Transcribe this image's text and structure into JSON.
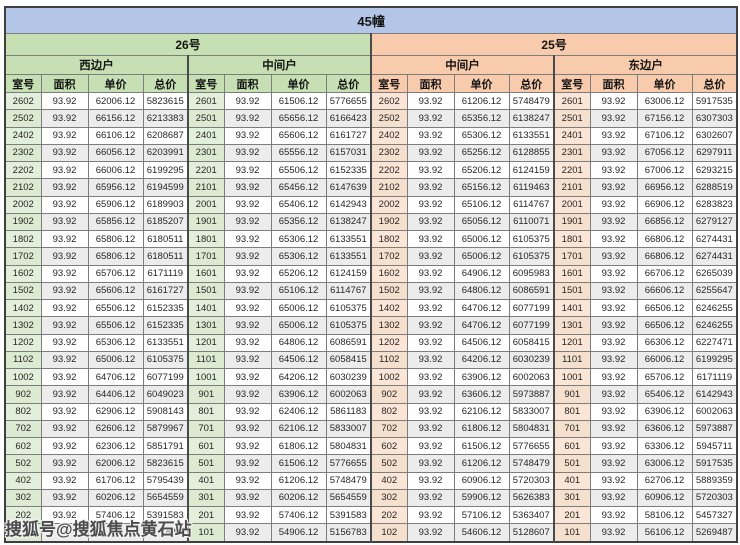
{
  "title": "45幢",
  "watermark": "搜狐号@搜狐焦点黄石站",
  "sections": [
    {
      "label": "26号"
    },
    {
      "label": "25号"
    }
  ],
  "unit_types": [
    "西边户",
    "中间户",
    "中间户",
    "东边户"
  ],
  "columns": [
    "室号",
    "面积",
    "单价",
    "总价"
  ],
  "colors": {
    "title_bg": "#b4c6e7",
    "section_26_bg": "#c6e0b4",
    "section_25_bg": "#f8cbad",
    "room_col_26_bg": "#e2efda",
    "room_col_25_bg": "#fbe5d6",
    "alt_row_bg": "#ececec",
    "border": "#7d7d7d"
  },
  "groups": [
    {
      "building": "26号",
      "unit": "西边户",
      "rows": [
        [
          "2602",
          "93.92",
          "62006.12",
          "5823615"
        ],
        [
          "2502",
          "93.92",
          "66156.12",
          "6213383"
        ],
        [
          "2402",
          "93.92",
          "66106.12",
          "6208687"
        ],
        [
          "2302",
          "93.92",
          "66056.12",
          "6203991"
        ],
        [
          "2202",
          "93.92",
          "66006.12",
          "6199295"
        ],
        [
          "2102",
          "93.92",
          "65956.12",
          "6194599"
        ],
        [
          "2002",
          "93.92",
          "65906.12",
          "6189903"
        ],
        [
          "1902",
          "93.92",
          "65856.12",
          "6185207"
        ],
        [
          "1802",
          "93.92",
          "65806.12",
          "6180511"
        ],
        [
          "1702",
          "93.92",
          "65806.12",
          "6180511"
        ],
        [
          "1602",
          "93.92",
          "65706.12",
          "6171119"
        ],
        [
          "1502",
          "93.92",
          "65606.12",
          "6161727"
        ],
        [
          "1402",
          "93.92",
          "65506.12",
          "6152335"
        ],
        [
          "1302",
          "93.92",
          "65506.12",
          "6152335"
        ],
        [
          "1202",
          "93.92",
          "65306.12",
          "6133551"
        ],
        [
          "1102",
          "93.92",
          "65006.12",
          "6105375"
        ],
        [
          "1002",
          "93.92",
          "64706.12",
          "6077199"
        ],
        [
          "902",
          "93.92",
          "64406.12",
          "6049023"
        ],
        [
          "802",
          "93.92",
          "62906.12",
          "5908143"
        ],
        [
          "702",
          "93.92",
          "62606.12",
          "5879967"
        ],
        [
          "602",
          "93.92",
          "62306.12",
          "5851791"
        ],
        [
          "502",
          "93.92",
          "62006.12",
          "5823615"
        ],
        [
          "402",
          "93.92",
          "61706.12",
          "5795439"
        ],
        [
          "302",
          "93.92",
          "60206.12",
          "5654559"
        ],
        [
          "202",
          "93.92",
          "57406.12",
          "5391583"
        ],
        [
          "",
          "",
          "",
          "743"
        ]
      ]
    },
    {
      "building": "26号",
      "unit": "中间户",
      "rows": [
        [
          "2601",
          "93.92",
          "61506.12",
          "5776655"
        ],
        [
          "2501",
          "93.92",
          "65656.12",
          "6166423"
        ],
        [
          "2401",
          "93.92",
          "65606.12",
          "6161727"
        ],
        [
          "2301",
          "93.92",
          "65556.12",
          "6157031"
        ],
        [
          "2201",
          "93.92",
          "65506.12",
          "6152335"
        ],
        [
          "2101",
          "93.92",
          "65456.12",
          "6147639"
        ],
        [
          "2001",
          "93.92",
          "65406.12",
          "6142943"
        ],
        [
          "1901",
          "93.92",
          "65356.12",
          "6138247"
        ],
        [
          "1801",
          "93.92",
          "65306.12",
          "6133551"
        ],
        [
          "1701",
          "93.92",
          "65306.12",
          "6133551"
        ],
        [
          "1601",
          "93.92",
          "65206.12",
          "6124159"
        ],
        [
          "1501",
          "93.92",
          "65106.12",
          "6114767"
        ],
        [
          "1401",
          "93.92",
          "65006.12",
          "6105375"
        ],
        [
          "1301",
          "93.92",
          "65006.12",
          "6105375"
        ],
        [
          "1201",
          "93.92",
          "64806.12",
          "6086591"
        ],
        [
          "1101",
          "93.92",
          "64506.12",
          "6058415"
        ],
        [
          "1001",
          "93.92",
          "64206.12",
          "6030239"
        ],
        [
          "901",
          "93.92",
          "63906.12",
          "6002063"
        ],
        [
          "801",
          "93.92",
          "62406.12",
          "5861183"
        ],
        [
          "701",
          "93.92",
          "62106.12",
          "5833007"
        ],
        [
          "601",
          "93.92",
          "61806.12",
          "5804831"
        ],
        [
          "501",
          "93.92",
          "61506.12",
          "5776655"
        ],
        [
          "401",
          "93.92",
          "61206.12",
          "5748479"
        ],
        [
          "301",
          "93.92",
          "60206.12",
          "5654559"
        ],
        [
          "201",
          "93.92",
          "57406.12",
          "5391583"
        ],
        [
          "101",
          "93.92",
          "54906.12",
          "5156783"
        ]
      ]
    },
    {
      "building": "25号",
      "unit": "中间户",
      "rows": [
        [
          "2602",
          "93.92",
          "61206.12",
          "5748479"
        ],
        [
          "2502",
          "93.92",
          "65356.12",
          "6138247"
        ],
        [
          "2402",
          "93.92",
          "65306.12",
          "6133551"
        ],
        [
          "2302",
          "93.92",
          "65256.12",
          "6128855"
        ],
        [
          "2202",
          "93.92",
          "65206.12",
          "6124159"
        ],
        [
          "2102",
          "93.92",
          "65156.12",
          "6119463"
        ],
        [
          "2002",
          "93.92",
          "65106.12",
          "6114767"
        ],
        [
          "1902",
          "93.92",
          "65056.12",
          "6110071"
        ],
        [
          "1802",
          "93.92",
          "65006.12",
          "6105375"
        ],
        [
          "1702",
          "93.92",
          "65006.12",
          "6105375"
        ],
        [
          "1602",
          "93.92",
          "64906.12",
          "6095983"
        ],
        [
          "1502",
          "93.92",
          "64806.12",
          "6086591"
        ],
        [
          "1402",
          "93.92",
          "64706.12",
          "6077199"
        ],
        [
          "1302",
          "93.92",
          "64706.12",
          "6077199"
        ],
        [
          "1202",
          "93.92",
          "64506.12",
          "6058415"
        ],
        [
          "1102",
          "93.92",
          "64206.12",
          "6030239"
        ],
        [
          "1002",
          "93.92",
          "63906.12",
          "6002063"
        ],
        [
          "902",
          "93.92",
          "63606.12",
          "5973887"
        ],
        [
          "802",
          "93.92",
          "62106.12",
          "5833007"
        ],
        [
          "702",
          "93.92",
          "61806.12",
          "5804831"
        ],
        [
          "602",
          "93.92",
          "61506.12",
          "5776655"
        ],
        [
          "502",
          "93.92",
          "61206.12",
          "5748479"
        ],
        [
          "402",
          "93.92",
          "60906.12",
          "5720303"
        ],
        [
          "302",
          "93.92",
          "59906.12",
          "5626383"
        ],
        [
          "202",
          "93.92",
          "57106.12",
          "5363407"
        ],
        [
          "102",
          "93.92",
          "54606.12",
          "5128607"
        ]
      ]
    },
    {
      "building": "25号",
      "unit": "东边户",
      "rows": [
        [
          "2601",
          "93.92",
          "63006.12",
          "5917535"
        ],
        [
          "2501",
          "93.92",
          "67156.12",
          "6307303"
        ],
        [
          "2401",
          "93.92",
          "67106.12",
          "6302607"
        ],
        [
          "2301",
          "93.92",
          "67056.12",
          "6297911"
        ],
        [
          "2201",
          "93.92",
          "67006.12",
          "6293215"
        ],
        [
          "2101",
          "93.92",
          "66956.12",
          "6288519"
        ],
        [
          "2001",
          "93.92",
          "66906.12",
          "6283823"
        ],
        [
          "1901",
          "93.92",
          "66856.12",
          "6279127"
        ],
        [
          "1801",
          "93.92",
          "66806.12",
          "6274431"
        ],
        [
          "1701",
          "93.92",
          "66806.12",
          "6274431"
        ],
        [
          "1601",
          "93.92",
          "66706.12",
          "6265039"
        ],
        [
          "1501",
          "93.92",
          "66606.12",
          "6255647"
        ],
        [
          "1401",
          "93.92",
          "66506.12",
          "6246255"
        ],
        [
          "1301",
          "93.92",
          "66506.12",
          "6246255"
        ],
        [
          "1201",
          "93.92",
          "66306.12",
          "6227471"
        ],
        [
          "1101",
          "93.92",
          "66006.12",
          "6199295"
        ],
        [
          "1001",
          "93.92",
          "65706.12",
          "6171119"
        ],
        [
          "901",
          "93.92",
          "65406.12",
          "6142943"
        ],
        [
          "801",
          "93.92",
          "63906.12",
          "6002063"
        ],
        [
          "701",
          "93.92",
          "63606.12",
          "5973887"
        ],
        [
          "601",
          "93.92",
          "63306.12",
          "5945711"
        ],
        [
          "501",
          "93.92",
          "63006.12",
          "5917535"
        ],
        [
          "401",
          "93.92",
          "62706.12",
          "5889359"
        ],
        [
          "301",
          "93.92",
          "60906.12",
          "5720303"
        ],
        [
          "201",
          "93.92",
          "58106.12",
          "5457327"
        ],
        [
          "101",
          "93.92",
          "56106.12",
          "5269487"
        ]
      ]
    }
  ]
}
